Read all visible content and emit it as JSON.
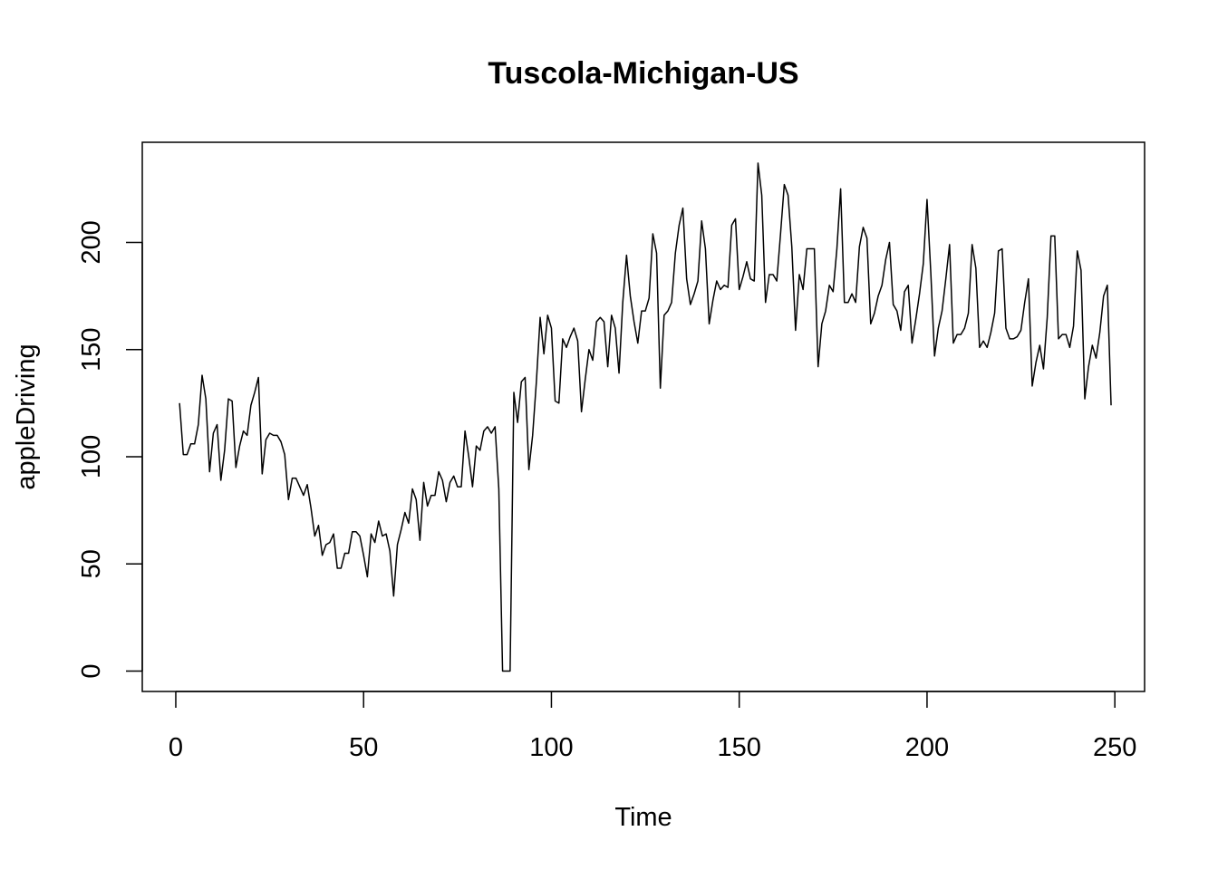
{
  "chart_data": {
    "type": "line",
    "title": "Tuscola-Michigan-US",
    "xlabel": "Time",
    "ylabel": "appleDriving",
    "xlim": [
      -8.92,
      257.92
    ],
    "ylim": [
      -9.5,
      246.7
    ],
    "x_ticks": [
      0,
      50,
      100,
      150,
      200,
      250
    ],
    "y_ticks": [
      0,
      50,
      100,
      150,
      200
    ],
    "grid": false,
    "legend": "none",
    "line_color": "#000000",
    "series": [
      {
        "x_start": 1,
        "values": [
          125,
          101,
          101,
          106,
          106,
          115,
          138,
          127,
          93,
          111,
          115,
          89,
          103,
          127,
          126,
          95,
          105,
          112,
          110,
          124,
          130,
          137,
          92,
          108,
          111,
          110,
          110,
          107,
          101,
          80,
          90,
          90,
          86,
          82,
          87,
          76,
          63,
          68,
          54,
          59,
          60,
          64,
          48,
          48,
          55,
          55,
          65,
          65,
          63,
          54,
          44,
          64,
          60,
          70,
          63,
          64,
          56,
          35,
          59,
          66,
          74,
          69,
          85,
          80,
          61,
          88,
          77,
          82,
          82,
          93,
          89,
          79,
          88,
          91,
          86,
          86,
          112,
          100,
          86,
          105,
          103,
          112,
          114,
          111,
          114,
          85,
          0,
          0,
          0,
          130,
          116,
          135,
          137,
          94,
          110,
          135,
          165,
          148,
          166,
          160,
          126,
          125,
          155,
          151,
          156,
          160,
          154,
          121,
          136,
          150,
          145,
          163,
          165,
          163,
          142,
          166,
          160,
          139,
          172,
          194,
          175,
          163,
          153,
          168,
          168,
          174,
          204,
          195,
          132,
          166,
          168,
          172,
          195,
          208,
          216,
          183,
          171,
          176,
          182,
          210,
          197,
          162,
          173,
          182,
          178,
          180,
          179,
          208,
          211,
          178,
          184,
          191,
          183,
          182,
          237,
          222,
          172,
          185,
          185,
          182,
          204,
          227,
          222,
          198,
          159,
          185,
          178,
          197,
          197,
          197,
          142,
          162,
          168,
          180,
          177,
          197,
          225,
          172,
          172,
          176,
          172,
          198,
          207,
          202,
          162,
          167,
          175,
          180,
          192,
          200,
          171,
          168,
          159,
          177,
          180,
          153,
          164,
          176,
          190,
          220,
          186,
          147,
          160,
          168,
          183,
          199,
          153,
          157,
          157,
          160,
          167,
          199,
          188,
          151,
          154,
          151,
          158,
          167,
          196,
          197,
          160,
          155,
          155,
          156,
          159,
          172,
          183,
          133,
          144,
          152,
          141,
          165,
          203,
          203,
          155,
          157,
          157,
          151,
          161,
          196,
          187,
          127,
          142,
          152,
          146,
          158,
          175,
          180,
          124
        ]
      }
    ]
  }
}
